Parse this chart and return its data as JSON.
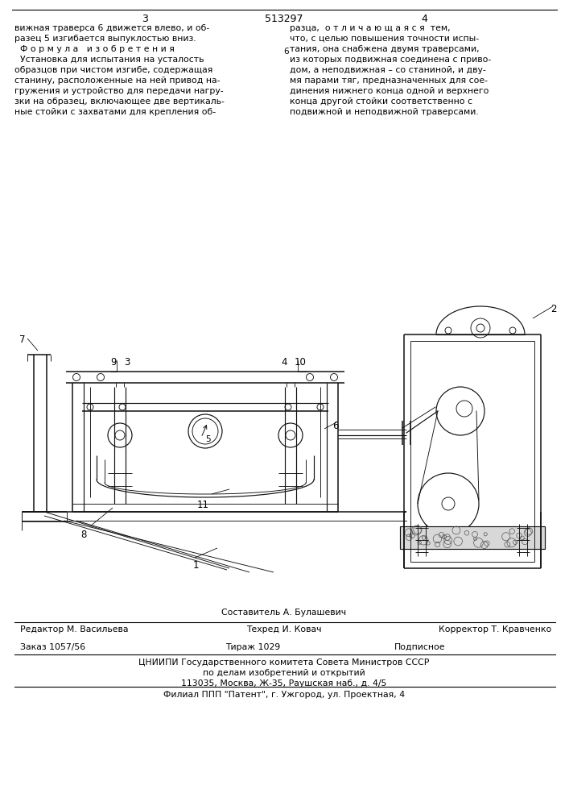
{
  "patent_number": "513297",
  "page_left": "3",
  "page_right": "4",
  "bg_color": "#ffffff",
  "text_color": "#1a1a1a",
  "top_left_text": [
    "вижная траверса 6 движется влево, и об-",
    "разец 5 изгибается выпуклостью вниз.",
    "  Ф о р м у л а   и з о б р е т е н и я",
    "  Установка для испытания на усталость",
    "образцов при чистом изгибе, содержащая",
    "станину, расположенные на ней привод на-",
    "гружения и устройство для передачи нагру-",
    "зки на образец, включающее две вертикаль-",
    "ные стойки с захватами для крепления об-"
  ],
  "top_right_text": [
    "разца,  о т л и ч а ю щ а я с я  тем,",
    "что, с целью повышения точности испы-",
    "тания, она снабжена двумя траверсами,",
    "из которых подвижная соединена с приво-",
    "дом, а неподвижная – со станиной, и дву-",
    "мя парами тяг, предназначенных для сое-",
    "динения нижнего конца одной и верхнего",
    "конца другой стойки соответственно с",
    "подвижной и неподвижной траверсами."
  ],
  "bottom_sestavitel": "Составитель А. Булашевич",
  "bottom_row1_left": "Редактор М. Васильева",
  "bottom_row1_mid": "Техред И. Ковач",
  "bottom_row1_right": "Корректор Т. Кравченко",
  "bottom_row2_left": "Заказ 1057/56",
  "bottom_row2_mid": "Тираж 1029",
  "bottom_row2_right": "Подписное",
  "bottom_row3": "ЦНИИПИ Государственного комитета Совета Министров СССР",
  "bottom_row4": "по делам изобретений и открытий",
  "bottom_row5": "113035, Москва, Ж-35, Раушская наб., д. 4/5",
  "bottom_row6": "Филиал ППП \"Патент\", г. Ужгород, ул. Проектная, 4"
}
